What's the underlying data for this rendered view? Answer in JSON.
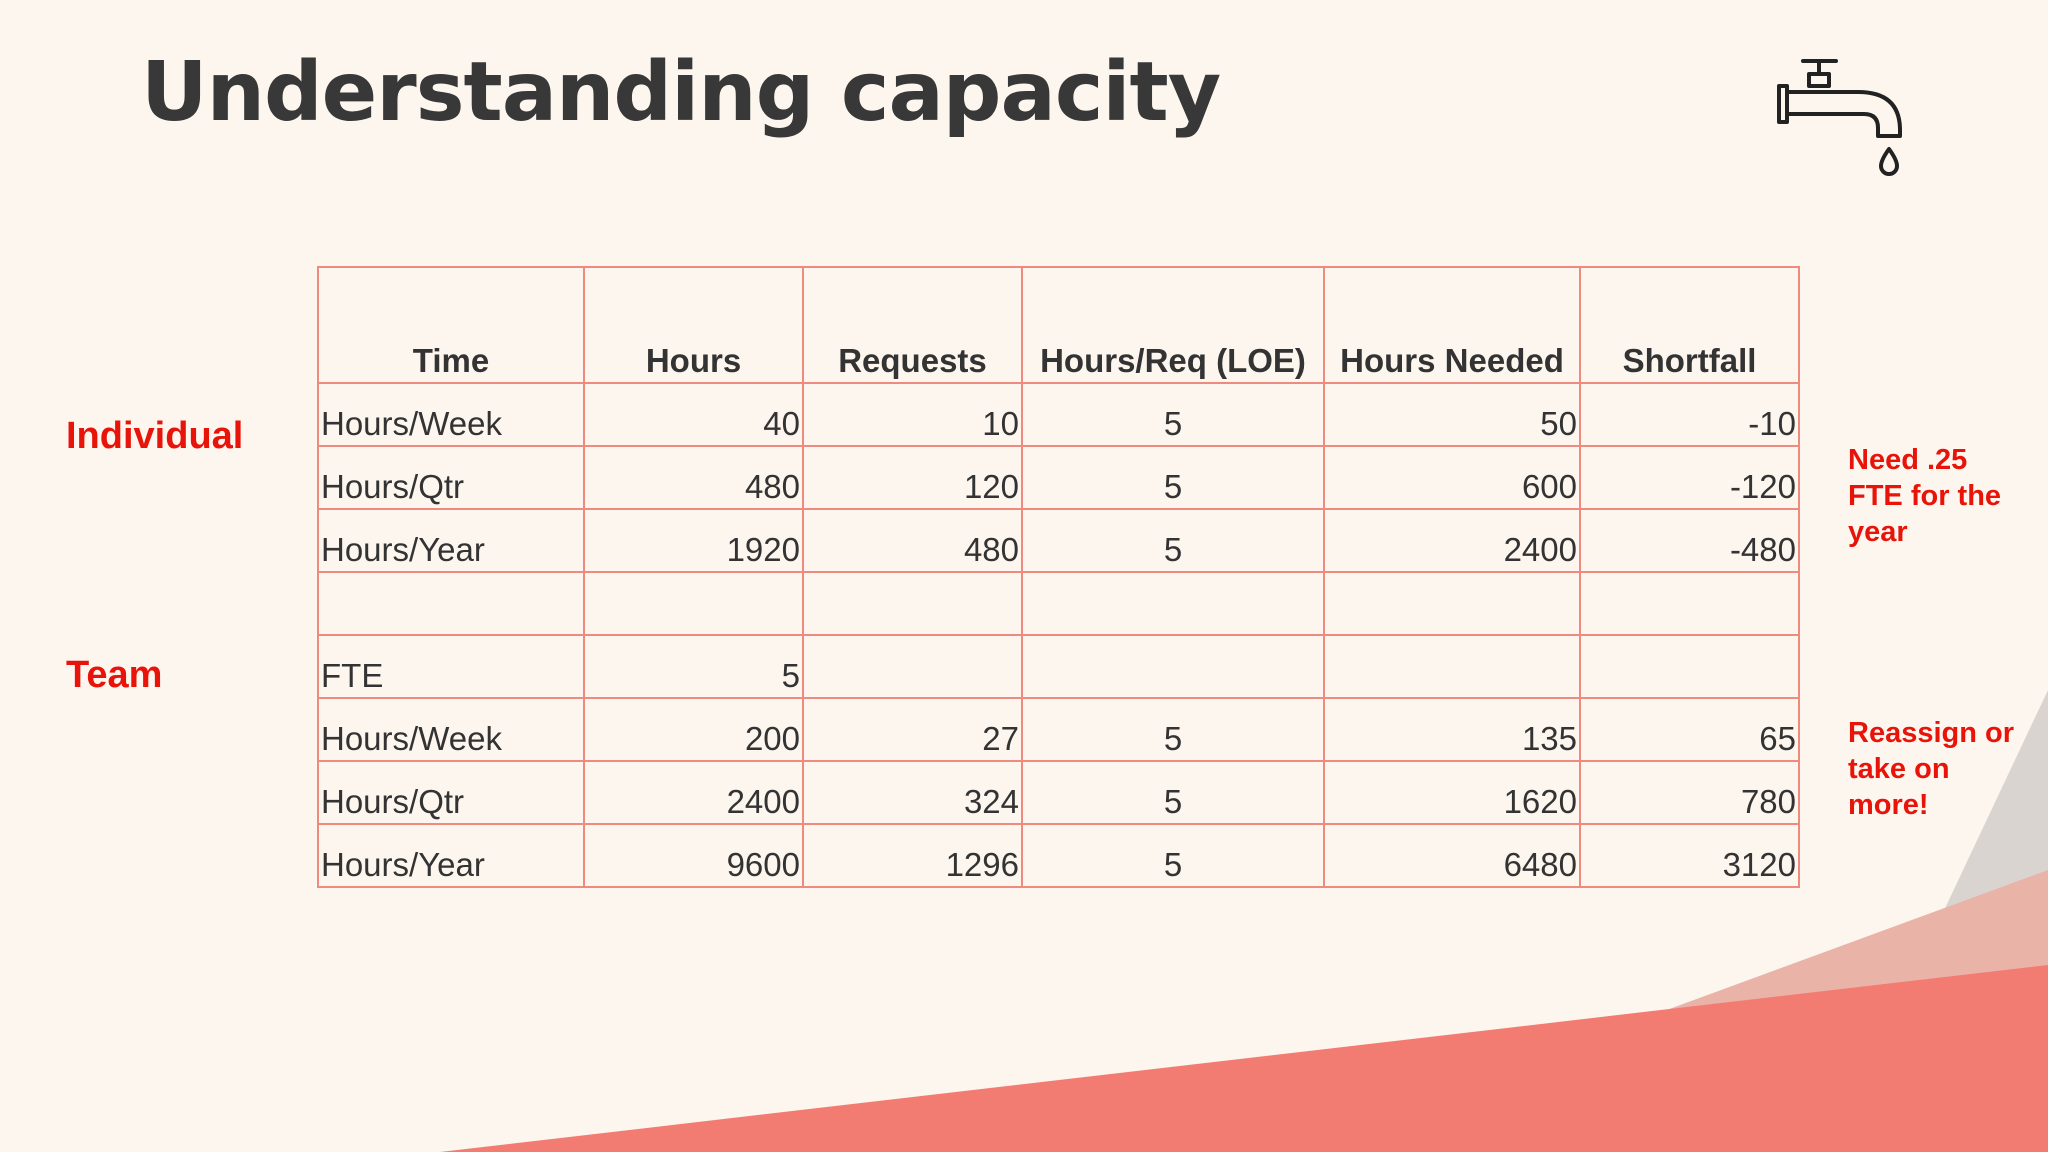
{
  "title": "Understanding capacity",
  "icons": {
    "faucet": "faucet-icon"
  },
  "colors": {
    "accent_red": "#e8140a",
    "table_border": "#ee8a7e",
    "title_text": "#383838",
    "background": "#fcf6ef"
  },
  "labels": {
    "individual": "Individual",
    "team": "Team"
  },
  "notes": {
    "fte": "Need .25 FTE for the year",
    "reassign": "Reassign or take on more!"
  },
  "table": {
    "headers": [
      "Time",
      "Hours",
      "Requests",
      "Hours/Req (LOE)",
      "Hours Needed",
      "Shortfall"
    ],
    "rows": [
      [
        "Hours/Week",
        "40",
        "10",
        "5",
        "50",
        "-10"
      ],
      [
        "Hours/Qtr",
        "480",
        "120",
        "5",
        "600",
        "-120"
      ],
      [
        "Hours/Year",
        "1920",
        "480",
        "5",
        "2400",
        "-480"
      ],
      [
        "",
        "",
        "",
        "",
        "",
        ""
      ],
      [
        "FTE",
        "5",
        "",
        "",
        "",
        ""
      ],
      [
        "Hours/Week",
        "200",
        "27",
        "5",
        "135",
        "65"
      ],
      [
        "Hours/Qtr",
        "2400",
        "324",
        "5",
        "1620",
        "780"
      ],
      [
        "Hours/Year",
        "9600",
        "1296",
        "5",
        "6480",
        "3120"
      ]
    ]
  }
}
